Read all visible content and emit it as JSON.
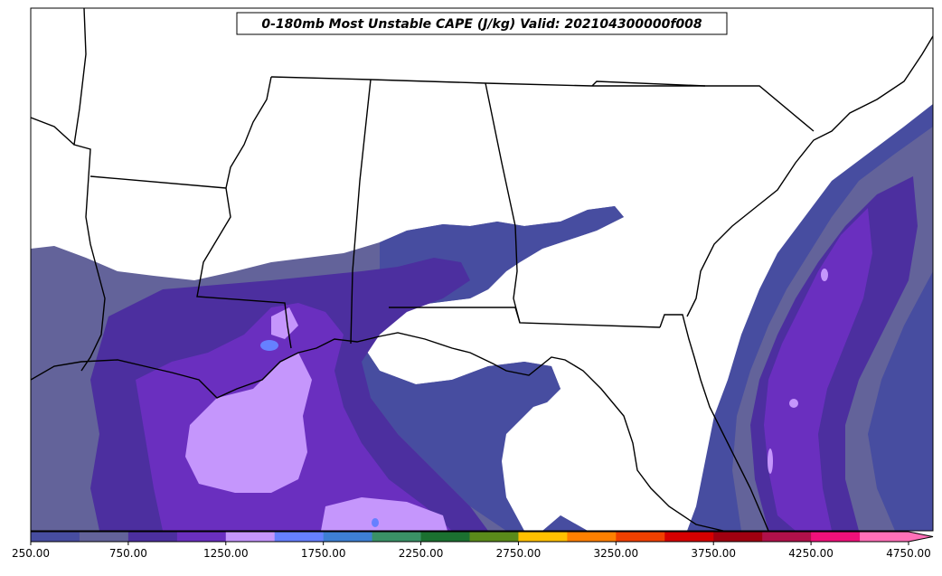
{
  "title": "0-180mb Most Unstable CAPE (J/kg) Valid: 202104300000f008",
  "colorbar": {
    "colors": [
      "#474da0",
      "#63639a",
      "#4c2f9f",
      "#6a2fbf",
      "#c596fc",
      "#6680ff",
      "#3e7fd4",
      "#3a9166",
      "#1b7030",
      "#5a8a1a",
      "#ffc000",
      "#ff8000",
      "#f04000",
      "#d50000",
      "#a00010",
      "#b0104a",
      "#f0107a",
      "#ff70b8"
    ],
    "tick_labels": [
      "250.00",
      "750.00",
      "1250.00",
      "1750.00",
      "2250.00",
      "2750.00",
      "3250.00",
      "3750.00",
      "4250.00",
      "4750.00"
    ]
  }
}
